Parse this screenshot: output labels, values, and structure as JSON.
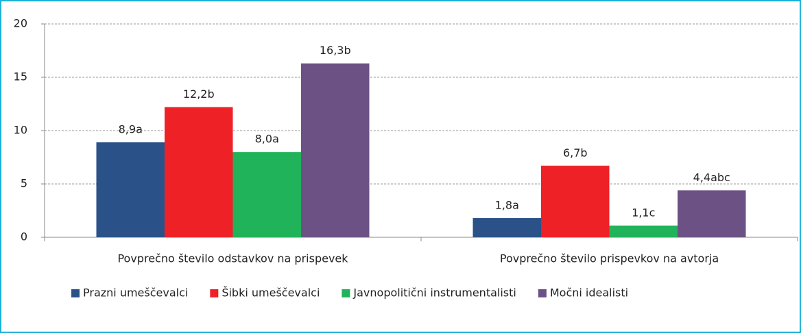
{
  "chart_data": {
    "type": "bar",
    "categories": [
      "Povprečno število odstavkov na prispevek",
      "Povprečno število prispevkov na avtorja"
    ],
    "series": [
      {
        "name": "Prazni umeščevalci",
        "color": "#2a5289",
        "values": [
          8.9,
          1.8
        ],
        "value_labels": [
          "8,9a",
          "1,8a"
        ]
      },
      {
        "name": "Šibki umeščevalci",
        "color": "#ee2127",
        "values": [
          12.2,
          6.7
        ],
        "value_labels": [
          "12,2b",
          "6,7b"
        ]
      },
      {
        "name": "Javnopolitični instrumentalisti",
        "color": "#21b35a",
        "values": [
          8.0,
          1.1
        ],
        "value_labels": [
          "8,0a",
          "1,1c"
        ]
      },
      {
        "name": "Močni idealisti",
        "color": "#6c5185",
        "values": [
          16.3,
          4.4
        ],
        "value_labels": [
          "16,3b",
          "4,4abc"
        ]
      }
    ],
    "ylim": [
      0,
      20
    ],
    "yticks": [
      0,
      5,
      10,
      15,
      20
    ],
    "grid": true,
    "legend": "bottom"
  }
}
